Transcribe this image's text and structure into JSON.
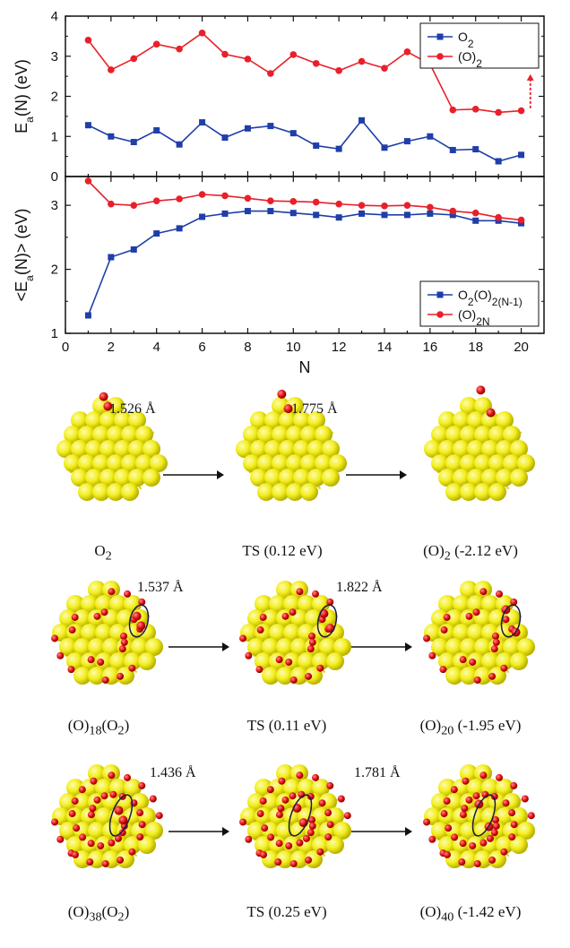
{
  "chart_data": [
    {
      "type": "line",
      "ylabel": "E_a(N) (eV)",
      "xlim": [
        0,
        21
      ],
      "ylim": [
        0,
        4
      ],
      "yticks": [
        0,
        1,
        2,
        3,
        4
      ],
      "x": [
        1,
        2,
        3,
        4,
        5,
        6,
        7,
        8,
        9,
        10,
        11,
        12,
        13,
        14,
        15,
        16,
        17,
        18,
        19,
        20
      ],
      "series": [
        {
          "name": "O2",
          "color": "#1f3ea8",
          "marker": "square",
          "values": [
            1.28,
            1.0,
            0.86,
            1.15,
            0.8,
            1.35,
            0.97,
            1.2,
            1.26,
            1.08,
            0.77,
            0.69,
            1.4,
            0.72,
            0.88,
            1.0,
            0.66,
            0.68,
            0.38,
            0.54
          ]
        },
        {
          "name": "(O)2",
          "color": "#e8202a",
          "marker": "circle",
          "values": [
            3.4,
            2.66,
            2.94,
            3.3,
            3.18,
            3.58,
            3.05,
            2.93,
            2.57,
            3.04,
            2.82,
            2.64,
            2.87,
            2.7,
            3.11,
            2.8,
            1.66,
            1.68,
            1.6,
            1.64
          ]
        }
      ],
      "annotation": {
        "type": "dashed-arrow",
        "color": "#e8202a",
        "x": 20.4,
        "from": 1.7,
        "to": 2.55
      },
      "legend": "top-right"
    },
    {
      "type": "line",
      "ylabel": "<E_a(N)> (eV)",
      "xlabel": "N",
      "xlim": [
        0,
        21
      ],
      "ylim": [
        1,
        3.45
      ],
      "yticks": [
        1,
        2,
        3
      ],
      "xticks": [
        0,
        2,
        4,
        6,
        8,
        10,
        12,
        14,
        16,
        18,
        20
      ],
      "x": [
        1,
        2,
        3,
        4,
        5,
        6,
        7,
        8,
        9,
        10,
        11,
        12,
        13,
        14,
        15,
        16,
        17,
        18,
        19,
        20
      ],
      "series": [
        {
          "name": "O2(O)2(N-1)",
          "color": "#1f3ea8",
          "marker": "square",
          "values": [
            1.28,
            2.19,
            2.31,
            2.56,
            2.64,
            2.82,
            2.87,
            2.91,
            2.91,
            2.88,
            2.85,
            2.81,
            2.87,
            2.85,
            2.85,
            2.87,
            2.85,
            2.76,
            2.76,
            2.72
          ]
        },
        {
          "name": "(O)2N",
          "color": "#e8202a",
          "marker": "circle",
          "values": [
            3.38,
            3.02,
            3.0,
            3.07,
            3.1,
            3.17,
            3.15,
            3.11,
            3.07,
            3.06,
            3.05,
            3.02,
            3.0,
            2.99,
            3.0,
            2.97,
            2.91,
            2.88,
            2.81,
            2.77
          ]
        }
      ],
      "legend": "bottom-right"
    }
  ],
  "structures": {
    "rows": [
      {
        "bond_lengths": [
          "1.526 Å",
          "1.775 Å"
        ],
        "captions": [
          "O",
          "TS (0.12 eV)",
          "(O)",
          "(-2.12 eV)"
        ],
        "caption_subs": [
          "2",
          "2"
        ],
        "oxygen_density": 0
      },
      {
        "bond_lengths": [
          "1.537 Å",
          "1.822 Å"
        ],
        "captions": [
          "(O)",
          "18",
          "(O",
          "2",
          ")",
          "TS (0.11 eV)",
          "(O)",
          "20",
          "(-1.95 eV)"
        ],
        "oxygen_density": 1
      },
      {
        "bond_lengths": [
          "1.436 Å",
          "1.781 Å"
        ],
        "captions": [
          "(O)",
          "38",
          "(O",
          "2",
          ")",
          "TS (0.25 eV)",
          "(O)",
          "40",
          "(-1.42 eV)"
        ],
        "oxygen_density": 2
      }
    ]
  },
  "colors": {
    "gold": "#f2ee1c",
    "gold_dark": "#b8b000",
    "oxygen": "#e01010"
  }
}
